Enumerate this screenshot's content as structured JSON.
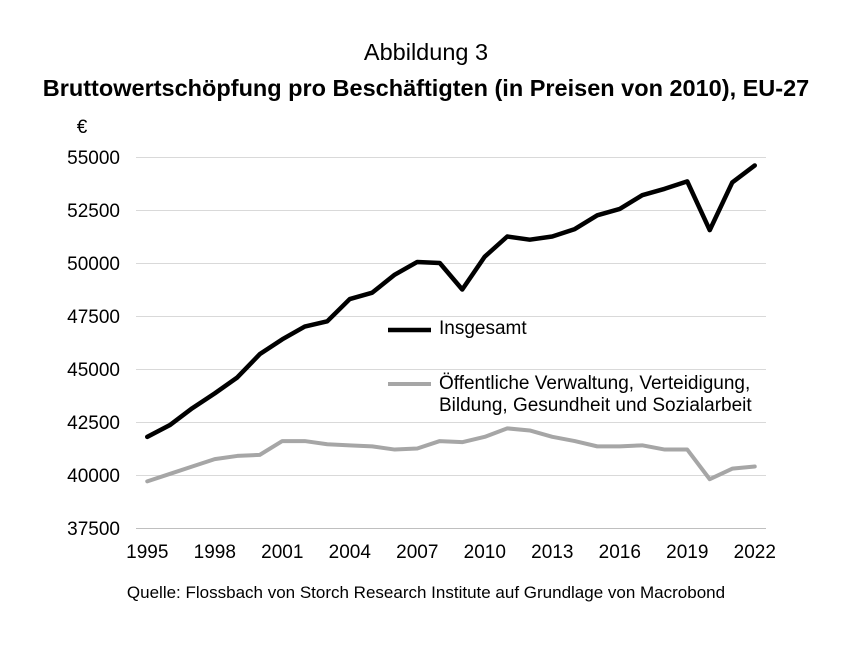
{
  "chart_data": {
    "type": "line",
    "figure_label": "Abbildung 3",
    "title": "Bruttowertschöpfung pro Beschäftigten (in Preisen von 2010), EU-27",
    "ylabel": "€",
    "x": [
      1995,
      1996,
      1997,
      1998,
      1999,
      2000,
      2001,
      2002,
      2003,
      2004,
      2005,
      2006,
      2007,
      2008,
      2009,
      2010,
      2011,
      2012,
      2013,
      2014,
      2015,
      2016,
      2017,
      2018,
      2019,
      2020,
      2021,
      2022
    ],
    "xticks": [
      1995,
      1998,
      2001,
      2004,
      2007,
      2010,
      2013,
      2016,
      2019,
      2022
    ],
    "yticks": [
      37500,
      40000,
      42500,
      45000,
      47500,
      50000,
      52500,
      55000
    ],
    "xlim": [
      1995,
      2022
    ],
    "ylim": [
      37500,
      55000
    ],
    "grid": "horizontal",
    "legend_position": "inside-center-right",
    "series": [
      {
        "name": "Insgesamt",
        "color": "#000000",
        "values": [
          41800,
          42350,
          43150,
          43850,
          44600,
          45700,
          46400,
          47000,
          47250,
          48300,
          48600,
          49450,
          50050,
          50000,
          48750,
          50300,
          51250,
          51100,
          51250,
          51600,
          52250,
          52550,
          53200,
          53500,
          53850,
          51550,
          53800,
          54600
        ]
      },
      {
        "name": "Öffentliche Verwaltung, Verteidigung, Bildung, Gesundheit und Sozialarbeit",
        "color": "#a6a6a6",
        "values": [
          39700,
          40050,
          40400,
          40750,
          40900,
          40950,
          41600,
          41600,
          41450,
          41400,
          41350,
          41200,
          41250,
          41600,
          41550,
          41800,
          42200,
          42100,
          41800,
          41600,
          41350,
          41350,
          41400,
          41200,
          41200,
          39800,
          40300,
          40400
        ]
      }
    ],
    "source": "Quelle: Flossbach von Storch Research Institute auf Grundlage von Macrobond"
  }
}
